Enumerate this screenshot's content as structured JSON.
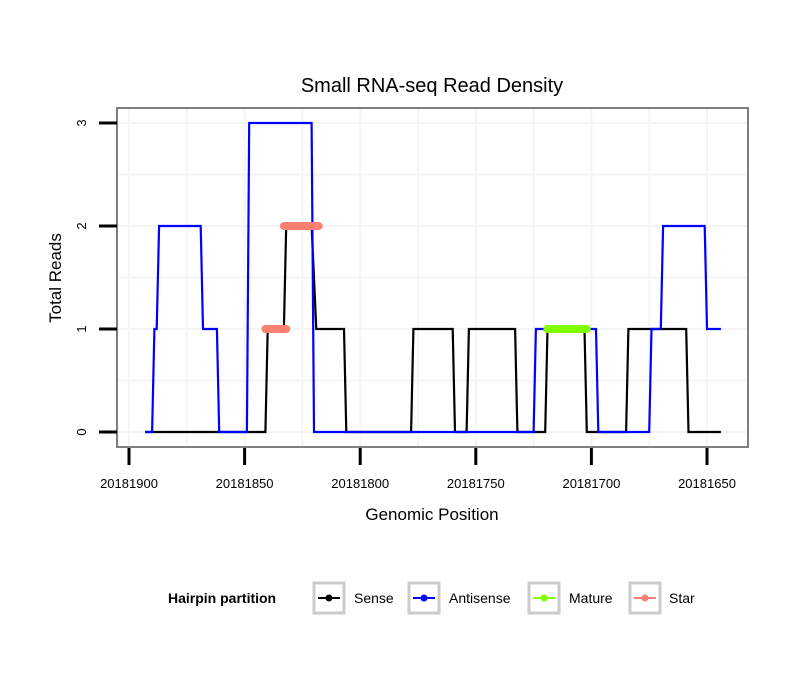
{
  "chart_data": {
    "type": "line",
    "step": true,
    "title": "Small RNA-seq Read Density",
    "xlabel": "Genomic Position",
    "ylabel": "Total Reads",
    "xlim": [
      20181906,
      20181641
    ],
    "x_reversed": true,
    "ylim": [
      -0.12,
      3.15
    ],
    "xticks": [
      20181900,
      20181850,
      20181800,
      20181750,
      20181700,
      20181650
    ],
    "xtick_labels": [
      "20181900",
      "20181850",
      "20181800",
      "20181750",
      "20181700",
      "20181650"
    ],
    "yticks": [
      0,
      1,
      2,
      3
    ],
    "ytick_labels": [
      "0",
      "1",
      "2",
      "3"
    ],
    "grid": true,
    "legend": {
      "title": "Hairpin partition",
      "position": "bottom",
      "entries": [
        {
          "name": "Sense",
          "color": "#000000"
        },
        {
          "name": "Antisense",
          "color": "#0000ff"
        },
        {
          "name": "Mature",
          "color": "#7fff00"
        },
        {
          "name": "Star",
          "color": "#fa8072"
        }
      ]
    },
    "series": [
      {
        "name": "Sense",
        "color": "#000000",
        "points": [
          [
            20181893,
            0
          ],
          [
            20181841,
            0
          ],
          [
            20181840,
            1
          ],
          [
            20181833,
            1
          ],
          [
            20181832,
            2
          ],
          [
            20181821,
            2
          ],
          [
            20181819,
            1
          ],
          [
            20181807,
            1
          ],
          [
            20181806,
            0
          ],
          [
            20181778,
            0
          ],
          [
            20181777,
            1
          ],
          [
            20181760,
            1
          ],
          [
            20181759,
            0
          ],
          [
            20181754,
            0
          ],
          [
            20181753,
            1
          ],
          [
            20181733,
            1
          ],
          [
            20181732,
            0
          ],
          [
            20181720,
            0
          ],
          [
            20181719,
            1
          ],
          [
            20181703,
            1
          ],
          [
            20181702,
            0
          ],
          [
            20181685,
            0
          ],
          [
            20181684,
            1
          ],
          [
            20181659,
            1
          ],
          [
            20181658,
            0
          ],
          [
            20181644,
            0
          ]
        ]
      },
      {
        "name": "Antisense",
        "color": "#0000ff",
        "points": [
          [
            20181893,
            0
          ],
          [
            20181890,
            0
          ],
          [
            20181889,
            1
          ],
          [
            20181888,
            1
          ],
          [
            20181887,
            2
          ],
          [
            20181869,
            2
          ],
          [
            20181868,
            1
          ],
          [
            20181862,
            1
          ],
          [
            20181861,
            0
          ],
          [
            20181849,
            0
          ],
          [
            20181848,
            3
          ],
          [
            20181821,
            3
          ],
          [
            20181820,
            0
          ],
          [
            20181725,
            0
          ],
          [
            20181724,
            1
          ],
          [
            20181698,
            1
          ],
          [
            20181697,
            0
          ],
          [
            20181675,
            0
          ],
          [
            20181674,
            1
          ],
          [
            20181670,
            1
          ],
          [
            20181669,
            2
          ],
          [
            20181651,
            2
          ],
          [
            20181650,
            1
          ],
          [
            20181644,
            1
          ]
        ]
      },
      {
        "name": "Mature",
        "color": "#7fff00",
        "segments": [
          {
            "x": [
              20181719,
              20181702
            ],
            "y": 1
          }
        ]
      },
      {
        "name": "Star",
        "color": "#fa8072",
        "segments": [
          {
            "x": [
              20181841,
              20181832
            ],
            "y": 1
          },
          {
            "x": [
              20181833,
              20181818
            ],
            "y": 2
          }
        ]
      }
    ]
  }
}
